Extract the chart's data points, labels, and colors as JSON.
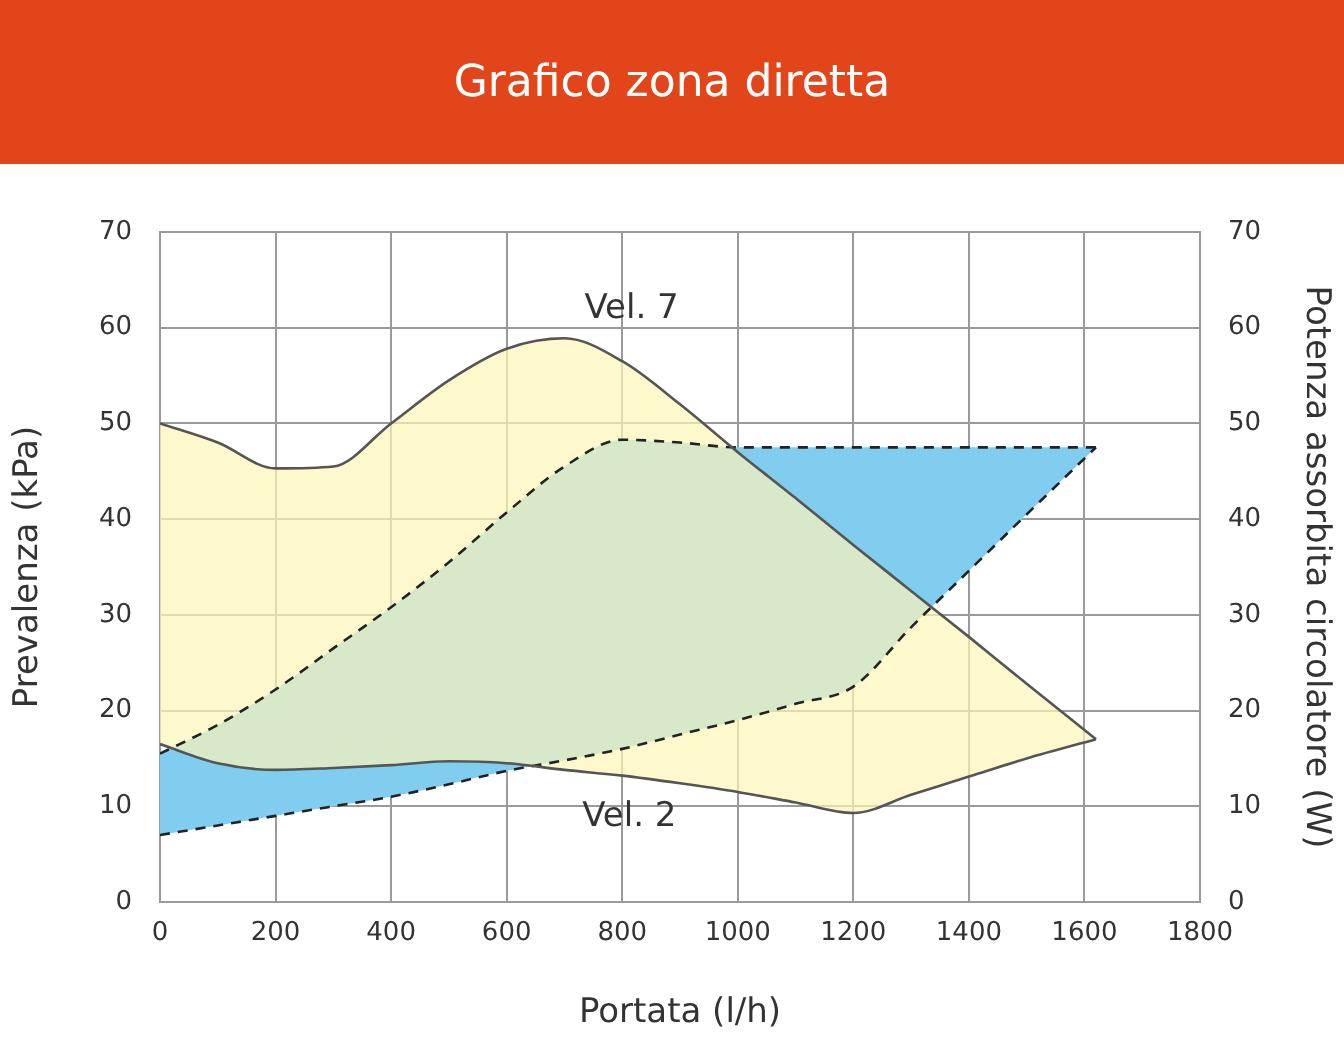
{
  "chart_data": {
    "type": "line",
    "title": "Grafico zona diretta",
    "xlabel": "Portata (l/h)",
    "ylabel": "Prevalenza (kPa)",
    "y2label": "Potenza assorbita circolatore (W)",
    "x": [
      0,
      100,
      200,
      300,
      400,
      500,
      600,
      700,
      800,
      900,
      1000,
      1100,
      1200,
      1300,
      1400,
      1500,
      1620
    ],
    "series": [
      {
        "type": "area",
        "name": "Vel. 7",
        "color": "#fef5b8",
        "values": [
          50,
          48,
          45.3,
          45.5,
          50,
          54.5,
          57.8,
          58.9,
          56.5,
          52,
          47,
          42.2,
          37.3,
          32.5,
          27.7,
          22.8,
          17
        ]
      },
      {
        "type": "line",
        "name": "Vel. 2",
        "color": "#555555",
        "values": [
          16.5,
          14.5,
          13.8,
          14,
          14.3,
          14.7,
          14.5,
          13.8,
          13.2,
          12.4,
          11.5,
          10.4,
          9.3,
          11.2,
          13.1,
          15,
          17
        ]
      },
      {
        "type": "area",
        "axis": "y2",
        "color": "#80cdf0",
        "line_style": "dashed",
        "values": [
          15.5,
          18.5,
          22.2,
          26.5,
          30.8,
          35.5,
          40.7,
          45.5,
          48.3,
          48,
          47.5,
          47.5,
          47.5,
          47.5,
          47.5,
          47.5,
          47.5
        ]
      },
      {
        "type": "line",
        "axis": "y2",
        "color": "#222222",
        "line_style": "dashed",
        "values": [
          7,
          8,
          9,
          10,
          11,
          12.3,
          13.7,
          14.8,
          16,
          17.5,
          19,
          20.7,
          22.5,
          28.7,
          34.6,
          40.5,
          47.5
        ]
      }
    ],
    "xlim": [
      0,
      1800
    ],
    "xticks": [
      0,
      200,
      400,
      600,
      800,
      1000,
      1200,
      1400,
      1600,
      1800
    ],
    "ylim": [
      0,
      70
    ],
    "yticks": [
      0,
      10,
      20,
      30,
      40,
      50,
      60,
      70
    ],
    "y2lim": [
      0,
      70
    ],
    "y2ticks": [
      0,
      10,
      20,
      30,
      40,
      50,
      60,
      70
    ],
    "grid": true,
    "legend": false,
    "marker": "none"
  }
}
